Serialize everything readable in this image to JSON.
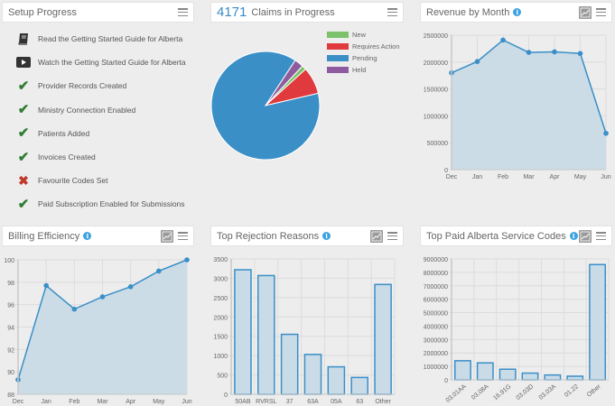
{
  "setup": {
    "title": "Setup Progress",
    "items": [
      {
        "icon": "book-icon",
        "label": "Read the Getting Started Guide for Alberta"
      },
      {
        "icon": "video-play-icon",
        "label": "Watch the Getting Started Guide for Alberta"
      },
      {
        "icon": "check-icon",
        "label": "Provider Records Created"
      },
      {
        "icon": "check-icon",
        "label": "Ministry Connection Enabled"
      },
      {
        "icon": "check-icon",
        "label": "Patients Added"
      },
      {
        "icon": "check-icon",
        "label": "Invoices Created"
      },
      {
        "icon": "cross-icon",
        "label": "Favourite Codes Set"
      },
      {
        "icon": "check-icon",
        "label": "Paid Subscription Enabled for Submissions"
      }
    ]
  },
  "claims": {
    "count": "4171",
    "title": "Claims in Progress"
  },
  "revenue": {
    "title": "Revenue by Month"
  },
  "billing": {
    "title": "Billing Efficiency"
  },
  "rejections": {
    "title": "Top Rejection Reasons"
  },
  "service_codes": {
    "title": "Top Paid Alberta Service Codes"
  },
  "colors": {
    "accent": "#3b8bc9",
    "new": "#7cc26a",
    "requires_action": "#e0393e",
    "pending": "#3a8fc7",
    "held": "#8e5c9e",
    "area_fill": "#c9dbe7",
    "line": "#3a8fc7"
  },
  "chart_data": [
    {
      "id": "claims",
      "type": "pie",
      "title": "Claims in Progress",
      "legend_position": "top-right",
      "categories": [
        "New",
        "Requires Action",
        "Pending",
        "Held"
      ],
      "values": [
        55,
        338,
        3666,
        112
      ]
    },
    {
      "id": "revenue",
      "type": "area",
      "title": "Revenue by Month",
      "categories": [
        "Dec",
        "Jan",
        "Feb",
        "Mar",
        "Apr",
        "May",
        "Jun"
      ],
      "values": [
        1800000,
        2010000,
        2410000,
        2180000,
        2190000,
        2160000,
        675000
      ],
      "yticks": [
        "0",
        "500000",
        "1000000",
        "1500000",
        "2000000",
        "2500000"
      ],
      "ylim": [
        0,
        2500000
      ],
      "grid": true
    },
    {
      "id": "billing",
      "type": "area",
      "title": "Billing Efficiency",
      "categories": [
        "Dec",
        "Jan",
        "Feb",
        "Mar",
        "Apr",
        "May",
        "Jun"
      ],
      "values": [
        89.3,
        97.7,
        95.6,
        96.7,
        97.6,
        99.0,
        100
      ],
      "yticks": [
        "88",
        "90",
        "92",
        "94",
        "96",
        "98",
        "100"
      ],
      "ylim": [
        88,
        100
      ],
      "grid": true
    },
    {
      "id": "rejections",
      "type": "bar",
      "title": "Top Rejection Reasons",
      "categories": [
        "50AB",
        "RVRSL",
        "37",
        "63A",
        "05A",
        "63",
        "Other"
      ],
      "values": [
        3220,
        3070,
        1550,
        1030,
        710,
        435,
        2840
      ],
      "yticks": [
        "0",
        "500",
        "1000",
        "1500",
        "2000",
        "2500",
        "3000",
        "3500"
      ],
      "ylim": [
        0,
        3500
      ],
      "grid": true
    },
    {
      "id": "service_codes",
      "type": "bar",
      "title": "Top Paid Alberta Service Codes",
      "categories": [
        "03.01AA",
        "03.08A",
        "16.91G",
        "03.03D",
        "03.03A",
        "01.22",
        "Other"
      ],
      "values": [
        1420000,
        1260000,
        790000,
        500000,
        360000,
        270000,
        8580000
      ],
      "yticks": [
        "0",
        "1000000",
        "2000000",
        "3000000",
        "4000000",
        "5000000",
        "6000000",
        "7000000",
        "8000000",
        "9000000"
      ],
      "ylim": [
        0,
        9000000
      ],
      "grid": true,
      "rotated_xlabels": true
    }
  ]
}
